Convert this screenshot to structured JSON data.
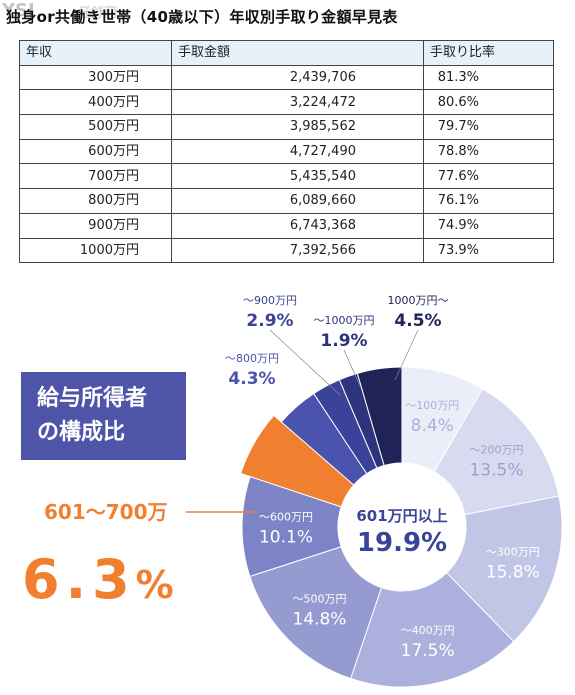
{
  "watermark": {
    "brand": "YSI",
    "mark": "牙舒丽"
  },
  "table": {
    "title": "独身or共働き世帯（40歳以下）年収別手取り金額早見表",
    "headers": [
      "年収",
      "手取金額",
      "手取り比率"
    ],
    "rows": [
      [
        "300万円",
        "2,439,706",
        "81.3%"
      ],
      [
        "400万円",
        "3,224,472",
        "80.6%"
      ],
      [
        "500万円",
        "3,985,562",
        "79.7%"
      ],
      [
        "600万円",
        "4,727,490",
        "78.8%"
      ],
      [
        "700万円",
        "5,435,540",
        "77.6%"
      ],
      [
        "800万円",
        "6,089,660",
        "76.1%"
      ],
      [
        "900万円",
        "6,743,368",
        "74.9%"
      ],
      [
        "1000万円",
        "7,392,566",
        "73.9%"
      ]
    ]
  },
  "badge": {
    "line1": "給与所得者",
    "line2": "の構成比"
  },
  "highlight": {
    "range": "601～700万",
    "value": "6.3",
    "unit": "%"
  },
  "center": {
    "label": "601万円以上",
    "value": "19.9%"
  },
  "colors": {
    "accent": "#f08030",
    "badge": "#4e55a8",
    "table_header": "#e6f1fa"
  },
  "chart_data": {
    "type": "pie",
    "slices": [
      {
        "label": "～100万円",
        "value": 8.4,
        "color": "#ebedf8",
        "text": "#aab0da"
      },
      {
        "label": "～200万円",
        "value": 13.5,
        "color": "#d8dbf0",
        "text": "#9aa0d2"
      },
      {
        "label": "～300万円",
        "value": 15.8,
        "color": "#c2c6e6",
        "text": "#ffffff"
      },
      {
        "label": "～400万円",
        "value": 17.5,
        "color": "#abb0dc",
        "text": "#ffffff"
      },
      {
        "label": "～500万円",
        "value": 14.8,
        "color": "#959bd0",
        "text": "#ffffff"
      },
      {
        "label": "～600万円",
        "value": 10.1,
        "color": "#7c83c6",
        "text": "#ffffff"
      },
      {
        "label": "～700万円",
        "value": 6.3,
        "color": "#f08030",
        "text": "#ffffff"
      },
      {
        "label": "～800万円",
        "value": 4.3,
        "color": "#4a53ad",
        "text": "#4a53ad"
      },
      {
        "label": "～900万円",
        "value": 2.9,
        "color": "#3a4299",
        "text": "#3a4299"
      },
      {
        "label": "～1000万円",
        "value": 1.9,
        "color": "#2d337c",
        "text": "#2d337c"
      },
      {
        "label": "1000万円～",
        "value": 4.5,
        "color": "#1f2358",
        "text": "#1f2358"
      }
    ]
  }
}
